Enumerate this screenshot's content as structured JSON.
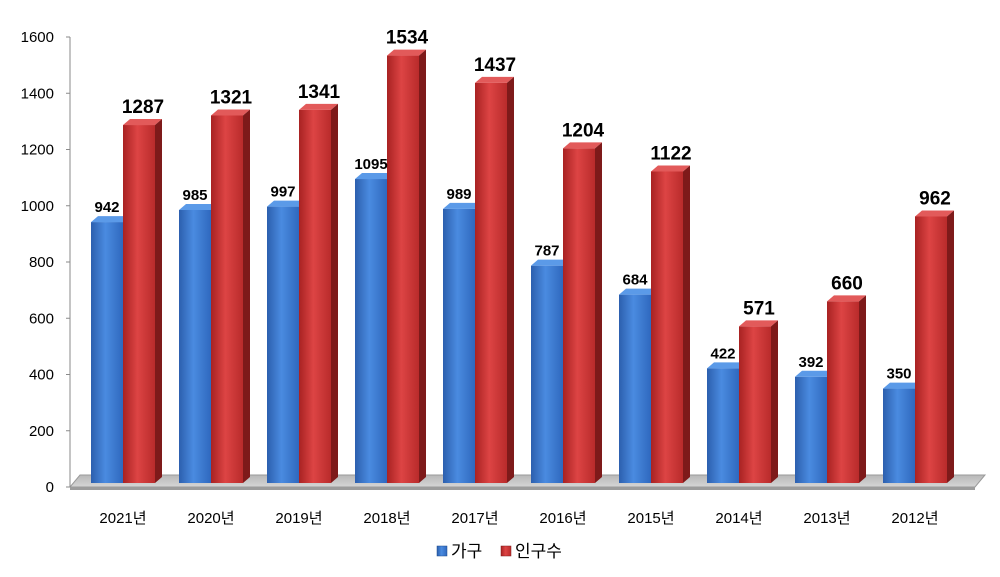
{
  "chart_data": {
    "type": "bar",
    "style": "3d-clustered-column",
    "categories": [
      "2021년",
      "2020년",
      "2019년",
      "2018년",
      "2017년",
      "2016년",
      "2015년",
      "2014년",
      "2013년",
      "2012년"
    ],
    "series": [
      {
        "name": "가구",
        "color": "#3a78cf",
        "values": [
          942,
          985,
          997,
          1095,
          989,
          787,
          684,
          422,
          392,
          350
        ]
      },
      {
        "name": "인구수",
        "color": "#cc3333",
        "values": [
          1287,
          1321,
          1341,
          1534,
          1437,
          1204,
          1122,
          571,
          660,
          962
        ]
      }
    ],
    "y_ticks": [
      0,
      200,
      400,
      600,
      800,
      1000,
      1200,
      1400,
      1600
    ],
    "ylim": [
      0,
      1600
    ],
    "grid": false,
    "legend_position": "bottom"
  }
}
